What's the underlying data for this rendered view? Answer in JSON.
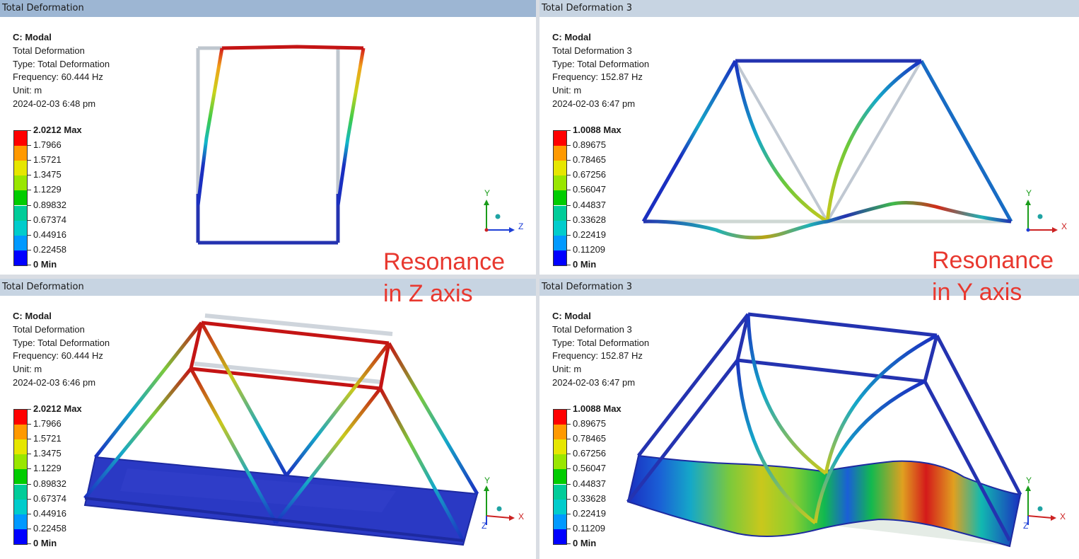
{
  "panels": [
    {
      "title": "Total Deformation",
      "system": "C: Modal",
      "result": "Total Deformation",
      "type": "Type: Total Deformation",
      "frequency": "Frequency: 60.444 Hz",
      "unit": "Unit: m",
      "timestamp": "2024-02-03 6:48 pm",
      "legend": [
        "2.0212 Max",
        "1.7966",
        "1.5721",
        "1.3475",
        "1.1229",
        "0.89832",
        "0.67374",
        "0.44916",
        "0.22458",
        "0 Min"
      ],
      "axes": [
        "Y",
        "Z"
      ]
    },
    {
      "title": "Total Deformation 3",
      "system": "C: Modal",
      "result": "Total Deformation 3",
      "type": "Type: Total Deformation",
      "frequency": "Frequency: 152.87 Hz",
      "unit": "Unit: m",
      "timestamp": "2024-02-03 6:47 pm",
      "legend": [
        "1.0088 Max",
        "0.89675",
        "0.78465",
        "0.67256",
        "0.56047",
        "0.44837",
        "0.33628",
        "0.22419",
        "0.11209",
        "0 Min"
      ],
      "axes": [
        "Y",
        "X"
      ]
    },
    {
      "title": "Total Deformation",
      "system": "C: Modal",
      "result": "Total Deformation",
      "type": "Type: Total Deformation",
      "frequency": "Frequency: 60.444 Hz",
      "unit": "Unit: m",
      "timestamp": "2024-02-03 6:46 pm",
      "legend": [
        "2.0212 Max",
        "1.7966",
        "1.5721",
        "1.3475",
        "1.1229",
        "0.89832",
        "0.67374",
        "0.44916",
        "0.22458",
        "0 Min"
      ],
      "axes": [
        "Y",
        "X",
        "Z"
      ]
    },
    {
      "title": "Total Deformation 3",
      "system": "C: Modal",
      "result": "Total Deformation 3",
      "type": "Type: Total Deformation",
      "frequency": "Frequency: 152.87 Hz",
      "unit": "Unit: m",
      "timestamp": "2024-02-03 6:47 pm",
      "legend": [
        "1.0088 Max",
        "0.89675",
        "0.78465",
        "0.67256",
        "0.56047",
        "0.44837",
        "0.33628",
        "0.22419",
        "0.11209",
        "0 Min"
      ],
      "axes": [
        "Y",
        "X",
        "Z"
      ]
    }
  ],
  "annotations": {
    "z_line1": "Resonance",
    "z_line2": "in Z axis",
    "y_line1": "Resonance",
    "y_line2": "in Y axis"
  },
  "legend_colors": [
    "#ff0000",
    "#ff9900",
    "#e6e600",
    "#99e600",
    "#00cc00",
    "#00cc99",
    "#00cccc",
    "#0099ff",
    "#0000ff"
  ],
  "annotation_color": "#e8382f",
  "undeformed_color": "#c0c8d2"
}
